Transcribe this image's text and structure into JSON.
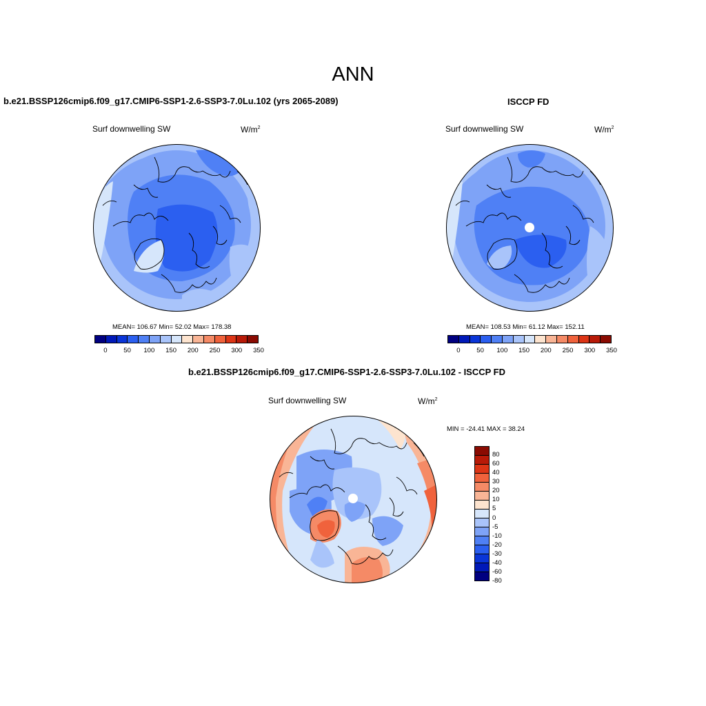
{
  "figure": {
    "title": "ANN",
    "left_panel_title": "b.e21.BSSP126cmip6.f09_g17.CMIP6-SSP1-2.6-SSP3-7.0Lu.102 (yrs 2065-2089)",
    "right_panel_title": "ISCCP FD",
    "diff_panel_title": "b.e21.BSSP126cmip6.f09_g17.CMIP6-SSP1-2.6-SSP3-7.0Lu.102 - ISCCP FD"
  },
  "panels": {
    "left": {
      "variable": "Surf downwelling SW",
      "units": "W/m",
      "units_sup": "2",
      "stats": "MEAN= 106.67  Min=  52.02  Max= 178.38"
    },
    "right": {
      "variable": "Surf downwelling SW",
      "units": "W/m",
      "units_sup": "2",
      "stats": "MEAN= 108.53  Min=  61.12  Max= 152.11"
    },
    "diff": {
      "variable": "Surf downwelling SW",
      "units": "W/m",
      "units_sup": "2",
      "stats": "MIN = -24.41 MAX =  38.24"
    }
  },
  "colorbars": {
    "abs_colors": [
      "#000080",
      "#0019b8",
      "#0a35d8",
      "#2b5ff0",
      "#4f80f5",
      "#7ea3f7",
      "#a9c4fa",
      "#d6e6fb",
      "#fde4cf",
      "#f9b596",
      "#f58a66",
      "#f0623c",
      "#dd3516",
      "#b81a08",
      "#8a0b02"
    ],
    "abs_ticks": [
      "0",
      "50",
      "100",
      "150",
      "200",
      "250",
      "300",
      "350"
    ],
    "diff_colors": [
      "#8a0b02",
      "#b81a08",
      "#dd3516",
      "#f0623c",
      "#f58a66",
      "#f9b596",
      "#fde4cf",
      "#d6e6fb",
      "#a9c4fa",
      "#7ea3f7",
      "#4f80f5",
      "#2b5ff0",
      "#0a35d8",
      "#0019b8",
      "#000080"
    ],
    "diff_ticks": [
      "80",
      "60",
      "40",
      "30",
      "20",
      "10",
      "5",
      "0",
      "-5",
      "-10",
      "-20",
      "-30",
      "-40",
      "-60",
      "-80"
    ]
  },
  "colors": {
    "coast": "#000000",
    "deep_blue": "#2b5ff0",
    "mid_blue": "#4f80f5",
    "light_blue": "#7ea3f7",
    "pale_blue": "#a9c4fa",
    "very_pale": "#d6e6fb",
    "peach": "#fde4cf",
    "salmon": "#f9b596",
    "orange": "#f58a66",
    "red_orange": "#f0623c"
  }
}
